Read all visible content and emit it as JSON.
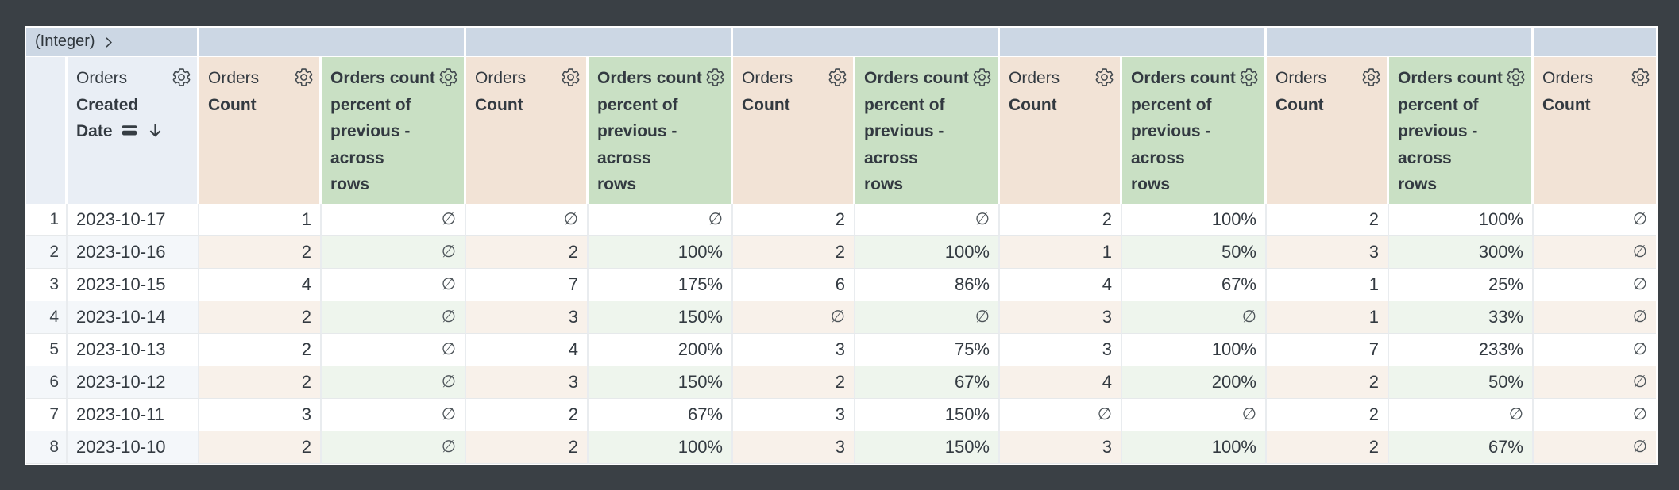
{
  "pivot_band": {
    "label": "(Integer)",
    "expand_icon": "chevron-right",
    "sections": [
      {
        "span": 2
      },
      {
        "span": 2
      },
      {
        "span": 2
      },
      {
        "span": 2
      },
      {
        "span": 2
      },
      {
        "span": 2
      },
      {
        "span": 1
      }
    ]
  },
  "table": {
    "empty_symbol": "∅",
    "columns": [
      {
        "kind": "index",
        "label": ""
      },
      {
        "kind": "dimension",
        "view": "Orders",
        "field_lines": [
          "Created",
          "Date"
        ],
        "sorted_desc": true,
        "icons": [
          "gear-icon",
          "pivot-rows-icon",
          "sort-desc-arrow"
        ]
      },
      {
        "kind": "measure",
        "view": "Orders",
        "field_lines": [
          "Count"
        ],
        "icons": [
          "gear-icon"
        ]
      },
      {
        "kind": "calc",
        "lines": [
          "Orders count",
          "percent of",
          "previous -",
          "across",
          "rows"
        ],
        "icons": [
          "gear-icon"
        ]
      },
      {
        "kind": "measure",
        "view": "Orders",
        "field_lines": [
          "Count"
        ],
        "icons": [
          "gear-icon"
        ]
      },
      {
        "kind": "calc",
        "lines": [
          "Orders count",
          "percent of",
          "previous -",
          "across",
          "rows"
        ],
        "icons": [
          "gear-icon"
        ]
      },
      {
        "kind": "measure",
        "view": "Orders",
        "field_lines": [
          "Count"
        ],
        "icons": [
          "gear-icon"
        ]
      },
      {
        "kind": "calc",
        "lines": [
          "Orders count",
          "percent of",
          "previous -",
          "across",
          "rows"
        ],
        "icons": [
          "gear-icon"
        ]
      },
      {
        "kind": "measure",
        "view": "Orders",
        "field_lines": [
          "Count"
        ],
        "icons": [
          "gear-icon"
        ]
      },
      {
        "kind": "calc",
        "lines": [
          "Orders count",
          "percent of",
          "previous -",
          "across",
          "rows"
        ],
        "icons": [
          "gear-icon"
        ]
      },
      {
        "kind": "measure",
        "view": "Orders",
        "field_lines": [
          "Count"
        ],
        "icons": [
          "gear-icon"
        ]
      },
      {
        "kind": "calc",
        "lines": [
          "Orders count",
          "percent of",
          "previous -",
          "across",
          "rows"
        ],
        "icons": [
          "gear-icon"
        ]
      },
      {
        "kind": "measure",
        "view": "Orders",
        "field_lines": [
          "Count"
        ],
        "icons": [
          "gear-icon"
        ]
      }
    ],
    "rows": [
      {
        "num": "1",
        "date": "2023-10-17",
        "values": [
          "1",
          "∅",
          "∅",
          "∅",
          "2",
          "∅",
          "2",
          "100%",
          "2",
          "100%",
          "∅"
        ]
      },
      {
        "num": "2",
        "date": "2023-10-16",
        "values": [
          "2",
          "∅",
          "2",
          "100%",
          "2",
          "100%",
          "1",
          "50%",
          "3",
          "300%",
          "∅"
        ]
      },
      {
        "num": "3",
        "date": "2023-10-15",
        "values": [
          "4",
          "∅",
          "7",
          "175%",
          "6",
          "86%",
          "4",
          "67%",
          "1",
          "25%",
          "∅"
        ]
      },
      {
        "num": "4",
        "date": "2023-10-14",
        "values": [
          "2",
          "∅",
          "3",
          "150%",
          "∅",
          "∅",
          "3",
          "∅",
          "1",
          "33%",
          "∅"
        ]
      },
      {
        "num": "5",
        "date": "2023-10-13",
        "values": [
          "2",
          "∅",
          "4",
          "200%",
          "3",
          "75%",
          "3",
          "100%",
          "7",
          "233%",
          "∅"
        ]
      },
      {
        "num": "6",
        "date": "2023-10-12",
        "values": [
          "2",
          "∅",
          "3",
          "150%",
          "2",
          "67%",
          "4",
          "200%",
          "2",
          "50%",
          "∅"
        ]
      },
      {
        "num": "7",
        "date": "2023-10-11",
        "values": [
          "3",
          "∅",
          "2",
          "67%",
          "3",
          "150%",
          "∅",
          "∅",
          "2",
          "∅",
          "∅"
        ]
      },
      {
        "num": "8",
        "date": "2023-10-10",
        "values": [
          "2",
          "∅",
          "2",
          "100%",
          "3",
          "150%",
          "3",
          "100%",
          "2",
          "67%",
          "∅"
        ]
      }
    ]
  },
  "colors": {
    "frame": "#3a4045",
    "pivot_band": "#ccd7e4",
    "dimension_header": "#e9eef5",
    "measure_header": "#f2e3d6",
    "calc_header": "#c9e0c4",
    "even_row_index": "#f4f7fa",
    "even_row_measure": "#f8f1ea",
    "even_row_calc": "#eef5ed",
    "text": "#333a41"
  }
}
